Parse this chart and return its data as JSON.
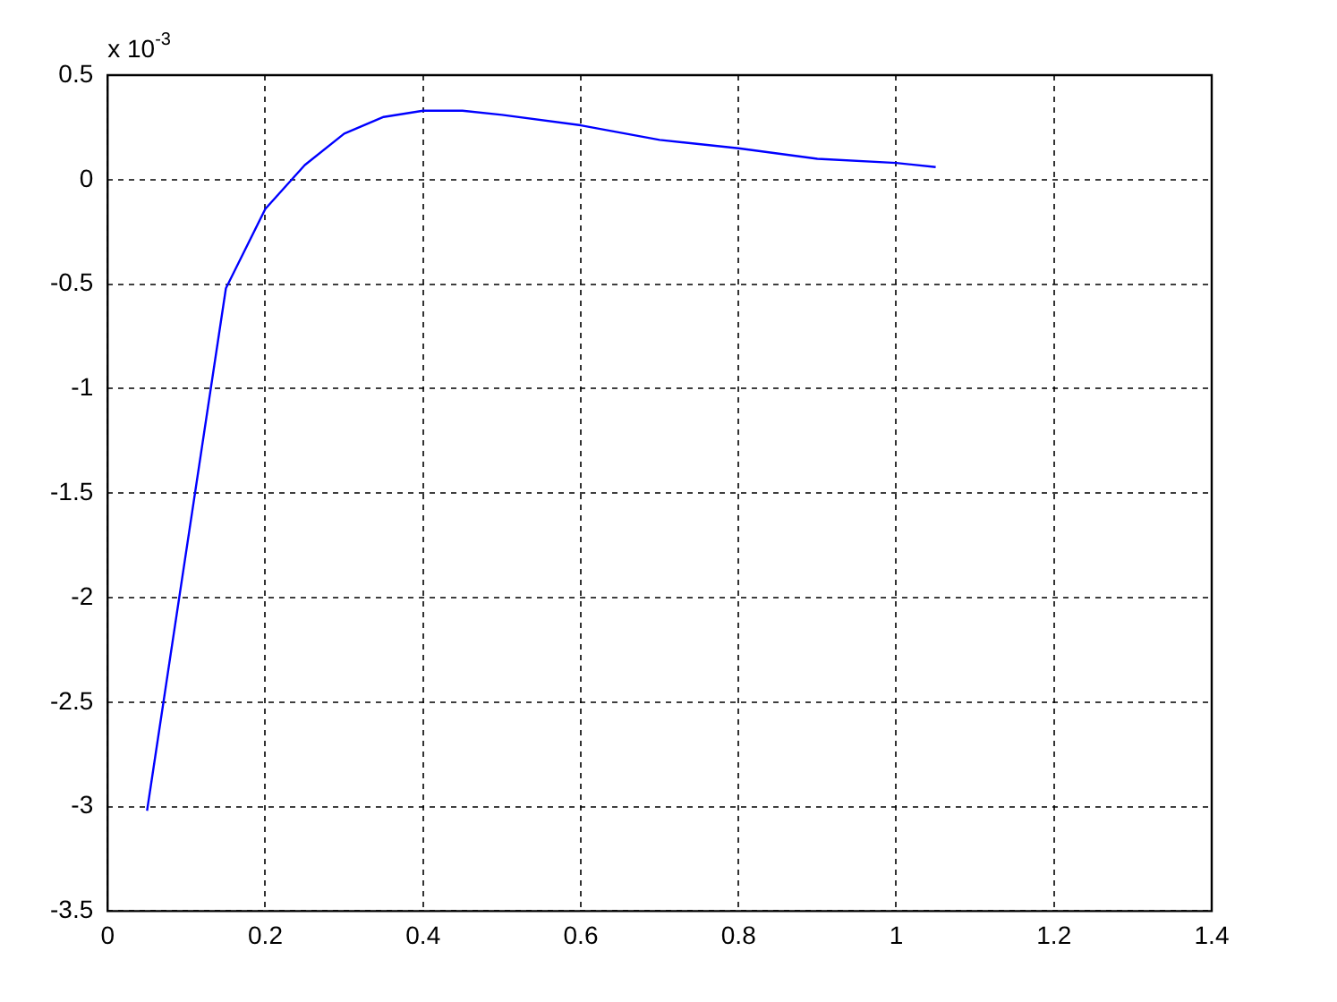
{
  "chart_data": {
    "type": "line",
    "x": [
      0.05,
      0.15,
      0.2,
      0.25,
      0.3,
      0.35,
      0.4,
      0.45,
      0.5,
      0.6,
      0.7,
      0.8,
      0.9,
      1.0,
      1.05
    ],
    "series": [
      {
        "color": "#0000ff",
        "values": [
          -3.02,
          -0.52,
          -0.14,
          0.07,
          0.22,
          0.3,
          0.33,
          0.33,
          0.31,
          0.26,
          0.19,
          0.15,
          0.1,
          0.08,
          0.06
        ]
      }
    ],
    "xlim": [
      0,
      1.4
    ],
    "xticks": [
      0,
      0.2,
      0.4,
      0.6,
      0.8,
      1,
      1.2,
      1.4
    ],
    "ylim": [
      -3.5,
      0.5
    ],
    "yticks": [
      -3.5,
      -3,
      -2.5,
      -2,
      -1.5,
      -1,
      -0.5,
      0,
      0.5
    ],
    "annotations": [
      "x 10$^{-3}$"
    ],
    "grid": true,
    "legend": false,
    "marker": "none",
    "line_style": "solid"
  }
}
